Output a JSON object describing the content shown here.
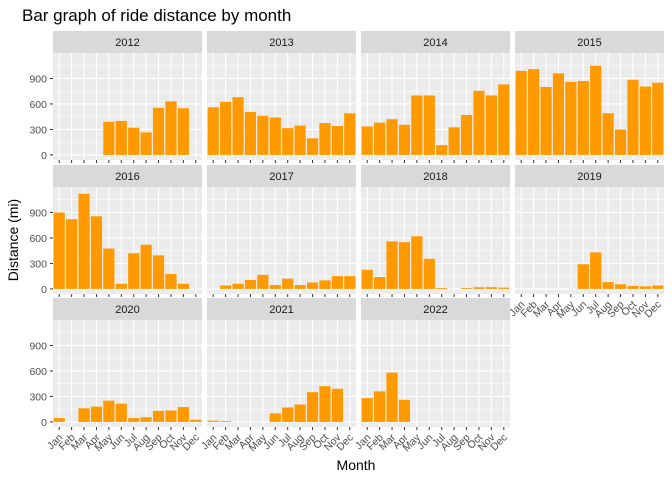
{
  "chart_data": {
    "type": "bar",
    "title": "Bar graph of ride distance by month",
    "xlabel": "Month",
    "ylabel": "Distance (mi)",
    "ylim": [
      0,
      1200
    ],
    "yticks": [
      0,
      300,
      600,
      900
    ],
    "categories": [
      "Jan",
      "Feb",
      "Mar",
      "Apr",
      "May",
      "Jun",
      "Jul",
      "Aug",
      "Sep",
      "Oct",
      "Nov",
      "Dec"
    ],
    "bar_color": "#FF9900",
    "panel_background": "#EBEBEB",
    "strip_background": "#D9D9D9",
    "grid": true,
    "facets": [
      {
        "name": "2012",
        "values": [
          0,
          0,
          0,
          0,
          390,
          400,
          320,
          265,
          555,
          630,
          550,
          0
        ]
      },
      {
        "name": "2013",
        "values": [
          560,
          625,
          680,
          505,
          460,
          440,
          315,
          345,
          195,
          375,
          340,
          490
        ]
      },
      {
        "name": "2014",
        "values": [
          335,
          380,
          420,
          355,
          700,
          700,
          115,
          325,
          470,
          755,
          700,
          830
        ]
      },
      {
        "name": "2015",
        "values": [
          990,
          1010,
          800,
          960,
          860,
          870,
          1050,
          490,
          300,
          885,
          805,
          850
        ]
      },
      {
        "name": "2016",
        "values": [
          900,
          820,
          1120,
          855,
          475,
          60,
          420,
          520,
          395,
          175,
          60,
          0
        ]
      },
      {
        "name": "2017",
        "values": [
          0,
          40,
          60,
          105,
          165,
          45,
          120,
          45,
          75,
          100,
          150,
          150
        ]
      },
      {
        "name": "2018",
        "values": [
          225,
          140,
          560,
          550,
          620,
          355,
          10,
          0,
          10,
          20,
          20,
          15
        ]
      },
      {
        "name": "2019",
        "values": [
          0,
          0,
          0,
          0,
          0,
          290,
          430,
          80,
          55,
          35,
          30,
          40
        ]
      },
      {
        "name": "2020",
        "values": [
          45,
          0,
          160,
          180,
          250,
          215,
          45,
          55,
          130,
          135,
          175,
          25
        ]
      },
      {
        "name": "2021",
        "values": [
          15,
          10,
          0,
          0,
          0,
          100,
          170,
          205,
          350,
          420,
          390,
          0
        ]
      },
      {
        "name": "2022",
        "values": [
          280,
          360,
          580,
          260,
          0,
          0,
          0,
          0,
          0,
          0,
          0,
          0
        ]
      }
    ]
  }
}
